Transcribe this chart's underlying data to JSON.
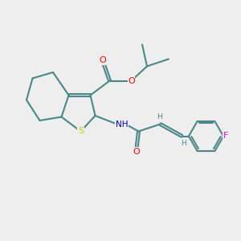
{
  "background_color": "#eeeeee",
  "bond_color": "#4a8888",
  "atom_colors": {
    "O": "#ff0000",
    "N": "#0000bb",
    "S": "#cccc00",
    "F": "#ee00ee",
    "H": "#4a8888",
    "C": "#4a8888"
  },
  "figsize": [
    3.0,
    3.0
  ],
  "dpi": 100
}
